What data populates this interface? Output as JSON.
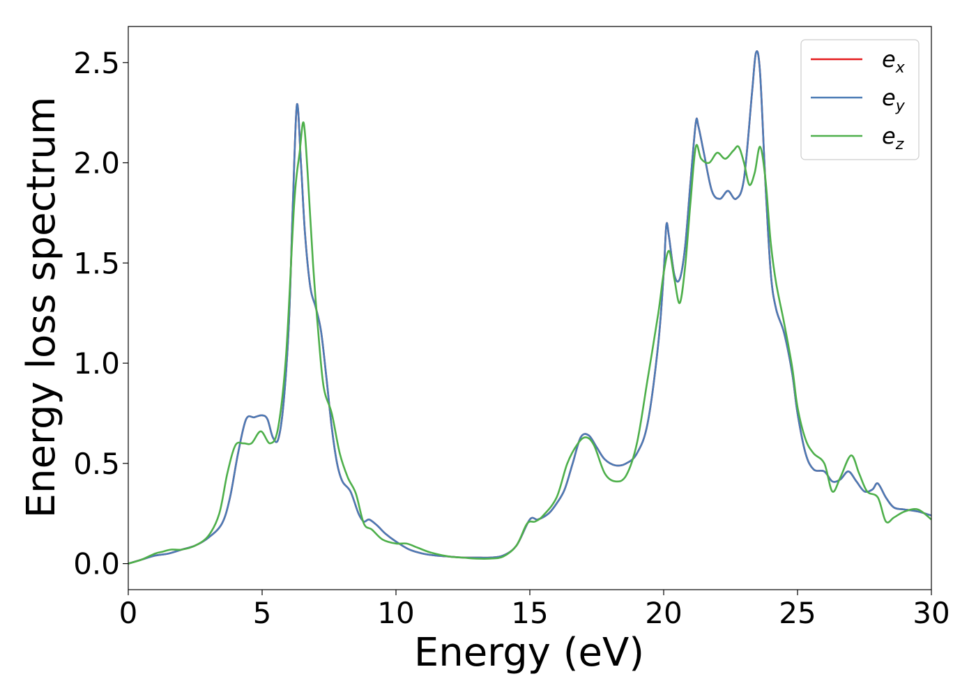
{
  "chart_data": {
    "type": "line",
    "title": "",
    "xlabel": "Energy (eV)",
    "ylabel": "Energy loss spectrum",
    "xlim": [
      0,
      30
    ],
    "ylim": [
      -0.13,
      2.68
    ],
    "x_ticks": [
      0,
      5,
      10,
      15,
      20,
      25,
      30
    ],
    "x_tick_labels": [
      "0",
      "5",
      "10",
      "15",
      "20",
      "25",
      "30"
    ],
    "y_ticks": [
      0.0,
      0.5,
      1.0,
      1.5,
      2.0,
      2.5
    ],
    "y_tick_labels": [
      "0.0",
      "0.5",
      "1.0",
      "1.5",
      "2.0",
      "2.5"
    ],
    "grid": false,
    "legend_position": "top-right",
    "series": [
      {
        "name": "e_x",
        "legend_base": "e",
        "legend_sub": "x",
        "color": "#e41a1c",
        "x": [
          0,
          0.5,
          1,
          1.5,
          2,
          2.5,
          3,
          3.5,
          3.8,
          4.1,
          4.4,
          4.7,
          5.0,
          5.2,
          5.4,
          5.6,
          5.8,
          6.0,
          6.15,
          6.3,
          6.45,
          6.6,
          6.8,
          7.0,
          7.2,
          7.4,
          7.6,
          7.8,
          8.0,
          8.3,
          8.6,
          8.8,
          9.0,
          9.3,
          9.6,
          10.0,
          10.5,
          11,
          11.5,
          12,
          12.5,
          13,
          13.5,
          14,
          14.5,
          15,
          15.3,
          15.7,
          16,
          16.3,
          16.6,
          16.9,
          17.2,
          17.5,
          17.8,
          18.2,
          18.6,
          19.0,
          19.4,
          19.8,
          20.0,
          20.1,
          20.2,
          20.4,
          20.6,
          20.8,
          21.0,
          21.2,
          21.3,
          21.5,
          21.8,
          22.1,
          22.4,
          22.7,
          23.0,
          23.3,
          23.45,
          23.6,
          23.8,
          24.0,
          24.2,
          24.5,
          24.8,
          25.0,
          25.3,
          25.6,
          26.0,
          26.3,
          26.6,
          26.9,
          27.2,
          27.5,
          27.8,
          28.0,
          28.3,
          28.6,
          29.0,
          29.5,
          30
        ],
        "y": [
          0.0,
          0.02,
          0.04,
          0.05,
          0.07,
          0.09,
          0.13,
          0.2,
          0.33,
          0.55,
          0.72,
          0.73,
          0.74,
          0.72,
          0.63,
          0.62,
          0.8,
          1.2,
          1.8,
          2.29,
          2.0,
          1.65,
          1.38,
          1.28,
          1.16,
          0.93,
          0.68,
          0.5,
          0.41,
          0.36,
          0.25,
          0.21,
          0.22,
          0.19,
          0.15,
          0.11,
          0.07,
          0.05,
          0.04,
          0.035,
          0.03,
          0.03,
          0.03,
          0.04,
          0.09,
          0.22,
          0.22,
          0.25,
          0.3,
          0.37,
          0.5,
          0.63,
          0.64,
          0.58,
          0.52,
          0.49,
          0.5,
          0.55,
          0.7,
          1.1,
          1.45,
          1.69,
          1.63,
          1.44,
          1.42,
          1.58,
          1.9,
          2.2,
          2.18,
          2.05,
          1.86,
          1.82,
          1.86,
          1.82,
          1.92,
          2.35,
          2.55,
          2.45,
          1.9,
          1.45,
          1.27,
          1.15,
          0.95,
          0.75,
          0.55,
          0.47,
          0.46,
          0.41,
          0.42,
          0.46,
          0.41,
          0.36,
          0.37,
          0.4,
          0.33,
          0.28,
          0.27,
          0.26,
          0.24
        ]
      },
      {
        "name": "e_y",
        "legend_base": "e",
        "legend_sub": "y",
        "color": "#4a7ab5",
        "x": [
          0,
          0.5,
          1,
          1.5,
          2,
          2.5,
          3,
          3.5,
          3.8,
          4.1,
          4.4,
          4.7,
          5.0,
          5.2,
          5.4,
          5.6,
          5.8,
          6.0,
          6.15,
          6.3,
          6.45,
          6.6,
          6.8,
          7.0,
          7.2,
          7.4,
          7.6,
          7.8,
          8.0,
          8.3,
          8.6,
          8.8,
          9.0,
          9.3,
          9.6,
          10.0,
          10.5,
          11,
          11.5,
          12,
          12.5,
          13,
          13.5,
          14,
          14.5,
          15,
          15.3,
          15.7,
          16,
          16.3,
          16.6,
          16.9,
          17.2,
          17.5,
          17.8,
          18.2,
          18.6,
          19.0,
          19.4,
          19.8,
          20.0,
          20.1,
          20.2,
          20.4,
          20.6,
          20.8,
          21.0,
          21.2,
          21.3,
          21.5,
          21.8,
          22.1,
          22.4,
          22.7,
          23.0,
          23.3,
          23.45,
          23.6,
          23.8,
          24.0,
          24.2,
          24.5,
          24.8,
          25.0,
          25.3,
          25.6,
          26.0,
          26.3,
          26.6,
          26.9,
          27.2,
          27.5,
          27.8,
          28.0,
          28.3,
          28.6,
          29.0,
          29.5,
          30
        ],
        "y": [
          0.0,
          0.02,
          0.04,
          0.05,
          0.07,
          0.09,
          0.13,
          0.2,
          0.33,
          0.55,
          0.72,
          0.73,
          0.74,
          0.72,
          0.63,
          0.62,
          0.8,
          1.2,
          1.8,
          2.29,
          2.0,
          1.65,
          1.38,
          1.28,
          1.16,
          0.93,
          0.68,
          0.5,
          0.41,
          0.36,
          0.25,
          0.21,
          0.22,
          0.19,
          0.15,
          0.11,
          0.07,
          0.05,
          0.04,
          0.035,
          0.03,
          0.03,
          0.03,
          0.04,
          0.09,
          0.22,
          0.22,
          0.25,
          0.3,
          0.37,
          0.5,
          0.63,
          0.64,
          0.58,
          0.52,
          0.49,
          0.5,
          0.55,
          0.7,
          1.1,
          1.45,
          1.69,
          1.63,
          1.44,
          1.42,
          1.58,
          1.9,
          2.2,
          2.18,
          2.05,
          1.86,
          1.82,
          1.86,
          1.82,
          1.92,
          2.35,
          2.55,
          2.45,
          1.9,
          1.45,
          1.27,
          1.15,
          0.95,
          0.75,
          0.55,
          0.47,
          0.46,
          0.41,
          0.42,
          0.46,
          0.41,
          0.36,
          0.37,
          0.4,
          0.33,
          0.28,
          0.27,
          0.26,
          0.24
        ]
      },
      {
        "name": "e_z",
        "legend_base": "e",
        "legend_sub": "z",
        "color": "#4daf4a",
        "x": [
          0,
          0.5,
          1,
          1.3,
          1.6,
          2,
          2.5,
          3,
          3.4,
          3.7,
          4.0,
          4.3,
          4.6,
          4.95,
          5.3,
          5.6,
          5.9,
          6.2,
          6.4,
          6.55,
          6.7,
          6.9,
          7.1,
          7.3,
          7.6,
          7.9,
          8.2,
          8.5,
          8.8,
          9.1,
          9.5,
          10.0,
          10.4,
          10.8,
          11.3,
          12,
          12.5,
          13,
          13.5,
          14,
          14.5,
          14.9,
          15.2,
          15.5,
          16,
          16.4,
          16.8,
          17.1,
          17.4,
          17.8,
          18.2,
          18.6,
          19.0,
          19.4,
          19.8,
          20.0,
          20.2,
          20.4,
          20.6,
          20.8,
          21.0,
          21.2,
          21.4,
          21.7,
          22.0,
          22.3,
          22.6,
          22.8,
          23.0,
          23.2,
          23.4,
          23.6,
          23.8,
          24.0,
          24.2,
          24.5,
          24.8,
          25.0,
          25.3,
          25.6,
          26.0,
          26.3,
          26.6,
          27.0,
          27.3,
          27.6,
          28.0,
          28.3,
          28.6,
          29.0,
          29.5,
          30
        ],
        "y": [
          0.0,
          0.02,
          0.05,
          0.06,
          0.07,
          0.07,
          0.09,
          0.14,
          0.25,
          0.45,
          0.59,
          0.6,
          0.6,
          0.66,
          0.6,
          0.68,
          1.05,
          1.8,
          2.05,
          2.2,
          1.95,
          1.5,
          1.15,
          0.88,
          0.75,
          0.55,
          0.43,
          0.35,
          0.2,
          0.17,
          0.12,
          0.1,
          0.1,
          0.08,
          0.055,
          0.035,
          0.03,
          0.025,
          0.025,
          0.035,
          0.09,
          0.2,
          0.21,
          0.24,
          0.33,
          0.5,
          0.6,
          0.63,
          0.59,
          0.45,
          0.41,
          0.44,
          0.6,
          0.92,
          1.25,
          1.45,
          1.56,
          1.42,
          1.3,
          1.48,
          1.8,
          2.08,
          2.02,
          2.0,
          2.05,
          2.02,
          2.06,
          2.08,
          2.0,
          1.89,
          1.95,
          2.08,
          1.92,
          1.6,
          1.4,
          1.2,
          0.98,
          0.78,
          0.62,
          0.55,
          0.5,
          0.36,
          0.43,
          0.54,
          0.45,
          0.36,
          0.33,
          0.21,
          0.23,
          0.26,
          0.27,
          0.22
        ]
      }
    ]
  }
}
